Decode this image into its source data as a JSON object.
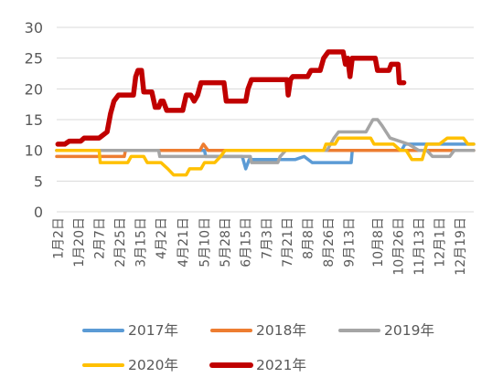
{
  "chart_data": {
    "type": "line",
    "title": "",
    "xlabel": "",
    "ylabel": "",
    "ylim": [
      0,
      30
    ],
    "yticks": [
      0,
      5,
      10,
      15,
      20,
      25,
      30
    ],
    "x_domain": [
      "01-01",
      "12-31"
    ],
    "x_ticks": [
      {
        "label": "1月2日",
        "date": "01-02"
      },
      {
        "label": "1月20日",
        "date": "01-20"
      },
      {
        "label": "2月7日",
        "date": "02-07"
      },
      {
        "label": "2月25日",
        "date": "02-25"
      },
      {
        "label": "3月15日",
        "date": "03-15"
      },
      {
        "label": "4月2日",
        "date": "04-02"
      },
      {
        "label": "4月21日",
        "date": "04-21"
      },
      {
        "label": "5月10日",
        "date": "05-10"
      },
      {
        "label": "5月28日",
        "date": "05-28"
      },
      {
        "label": "6月15日",
        "date": "06-15"
      },
      {
        "label": "7月3日",
        "date": "07-03"
      },
      {
        "label": "7月21日",
        "date": "07-21"
      },
      {
        "label": "8月8日",
        "date": "08-08"
      },
      {
        "label": "8月26日",
        "date": "08-26"
      },
      {
        "label": "9月13日",
        "date": "09-13"
      },
      {
        "label": "10月8日",
        "date": "10-08"
      },
      {
        "label": "10月26日",
        "date": "10-26"
      },
      {
        "label": "11月13日",
        "date": "11-13"
      },
      {
        "label": "12月1日",
        "date": "12-01"
      },
      {
        "label": "12月19日",
        "date": "12-19"
      }
    ],
    "grid": {
      "horizontal": true,
      "vertical": false
    },
    "legend_position": "bottom",
    "series": [
      {
        "name": "2017年",
        "color": "#5B9BD5",
        "stroke": 3.5,
        "points": [
          [
            "01-01",
            10
          ],
          [
            "05-10",
            10
          ],
          [
            "05-11",
            9
          ],
          [
            "06-12",
            9
          ],
          [
            "06-15",
            7
          ],
          [
            "06-18",
            8.5
          ],
          [
            "07-28",
            8.5
          ],
          [
            "08-05",
            9
          ],
          [
            "08-12",
            8
          ],
          [
            "09-15",
            8
          ],
          [
            "09-16",
            10
          ],
          [
            "10-29",
            10
          ],
          [
            "11-01",
            11
          ],
          [
            "12-31",
            11
          ]
        ]
      },
      {
        "name": "2018年",
        "color": "#ED7D31",
        "stroke": 3.5,
        "points": [
          [
            "01-01",
            9
          ],
          [
            "03-01",
            9
          ],
          [
            "03-02",
            10
          ],
          [
            "05-06",
            10
          ],
          [
            "05-09",
            11
          ],
          [
            "05-13",
            10
          ],
          [
            "12-31",
            10
          ]
        ]
      },
      {
        "name": "2019年",
        "color": "#A5A5A5",
        "stroke": 3.5,
        "points": [
          [
            "01-01",
            10
          ],
          [
            "03-31",
            10
          ],
          [
            "04-01",
            9
          ],
          [
            "06-19",
            9
          ],
          [
            "06-20",
            8
          ],
          [
            "07-13",
            8
          ],
          [
            "07-15",
            9
          ],
          [
            "07-20",
            10
          ],
          [
            "08-25",
            10
          ],
          [
            "08-31",
            12
          ],
          [
            "09-04",
            13
          ],
          [
            "09-28",
            13
          ],
          [
            "10-01",
            14
          ],
          [
            "10-04",
            15
          ],
          [
            "10-08",
            15
          ],
          [
            "10-12",
            14
          ],
          [
            "10-19",
            12
          ],
          [
            "11-04",
            11
          ],
          [
            "11-13",
            10
          ],
          [
            "11-20",
            10
          ],
          [
            "11-25",
            9
          ],
          [
            "12-10",
            9
          ],
          [
            "12-14",
            10
          ],
          [
            "12-31",
            10
          ]
        ]
      },
      {
        "name": "2020年",
        "color": "#FFC000",
        "stroke": 3.5,
        "points": [
          [
            "01-01",
            10
          ],
          [
            "02-07",
            10
          ],
          [
            "02-08",
            8
          ],
          [
            "03-04",
            8
          ],
          [
            "03-07",
            9
          ],
          [
            "03-18",
            9
          ],
          [
            "03-21",
            8
          ],
          [
            "04-02",
            8
          ],
          [
            "04-08",
            7
          ],
          [
            "04-13",
            6
          ],
          [
            "04-24",
            6
          ],
          [
            "04-27",
            7
          ],
          [
            "05-07",
            7
          ],
          [
            "05-10",
            8
          ],
          [
            "05-19",
            8
          ],
          [
            "05-24",
            9
          ],
          [
            "05-28",
            10
          ],
          [
            "07-19",
            10
          ],
          [
            "07-21",
            10
          ],
          [
            "08-22",
            10
          ],
          [
            "08-24",
            11
          ],
          [
            "09-01",
            11
          ],
          [
            "09-04",
            12
          ],
          [
            "10-02",
            12
          ],
          [
            "10-05",
            11
          ],
          [
            "10-22",
            11
          ],
          [
            "10-28",
            10
          ],
          [
            "11-02",
            10
          ],
          [
            "11-07",
            8.5
          ],
          [
            "11-16",
            8.5
          ],
          [
            "11-20",
            11
          ],
          [
            "12-01",
            11
          ],
          [
            "12-08",
            12
          ],
          [
            "12-22",
            12
          ],
          [
            "12-26",
            11
          ],
          [
            "12-31",
            11
          ]
        ]
      },
      {
        "name": "2021年",
        "color": "#C00000",
        "stroke": 5.5,
        "points": [
          [
            "01-02",
            11
          ],
          [
            "01-08",
            11
          ],
          [
            "01-12",
            11.5
          ],
          [
            "01-22",
            11.5
          ],
          [
            "01-25",
            12
          ],
          [
            "02-07",
            12
          ],
          [
            "02-14",
            13
          ],
          [
            "02-17",
            16
          ],
          [
            "02-20",
            18
          ],
          [
            "02-24",
            19
          ],
          [
            "03-09",
            19
          ],
          [
            "03-11",
            22
          ],
          [
            "03-13",
            23
          ],
          [
            "03-16",
            23
          ],
          [
            "03-18",
            19.5
          ],
          [
            "03-25",
            19.5
          ],
          [
            "03-28",
            17
          ],
          [
            "03-31",
            17
          ],
          [
            "04-02",
            18
          ],
          [
            "04-04",
            18
          ],
          [
            "04-07",
            16.5
          ],
          [
            "04-21",
            16.5
          ],
          [
            "04-24",
            19
          ],
          [
            "04-28",
            19
          ],
          [
            "05-01",
            18
          ],
          [
            "05-04",
            19
          ],
          [
            "05-07",
            21
          ],
          [
            "05-27",
            21
          ],
          [
            "05-29",
            18
          ],
          [
            "06-15",
            18
          ],
          [
            "06-17",
            20
          ],
          [
            "06-20",
            21.5
          ],
          [
            "07-21",
            21.5
          ],
          [
            "07-22",
            19
          ],
          [
            "07-24",
            21.5
          ],
          [
            "07-26",
            22
          ],
          [
            "08-08",
            22
          ],
          [
            "08-11",
            23
          ],
          [
            "08-19",
            23
          ],
          [
            "08-22",
            25
          ],
          [
            "08-26",
            26
          ],
          [
            "09-08",
            26
          ],
          [
            "09-10",
            24
          ],
          [
            "09-12",
            25
          ],
          [
            "09-14",
            22
          ],
          [
            "09-16",
            25
          ],
          [
            "10-06",
            25
          ],
          [
            "10-08",
            23
          ],
          [
            "10-18",
            23
          ],
          [
            "10-20",
            24
          ],
          [
            "10-26",
            24
          ],
          [
            "10-27",
            21
          ],
          [
            "10-31",
            21
          ]
        ]
      }
    ]
  }
}
